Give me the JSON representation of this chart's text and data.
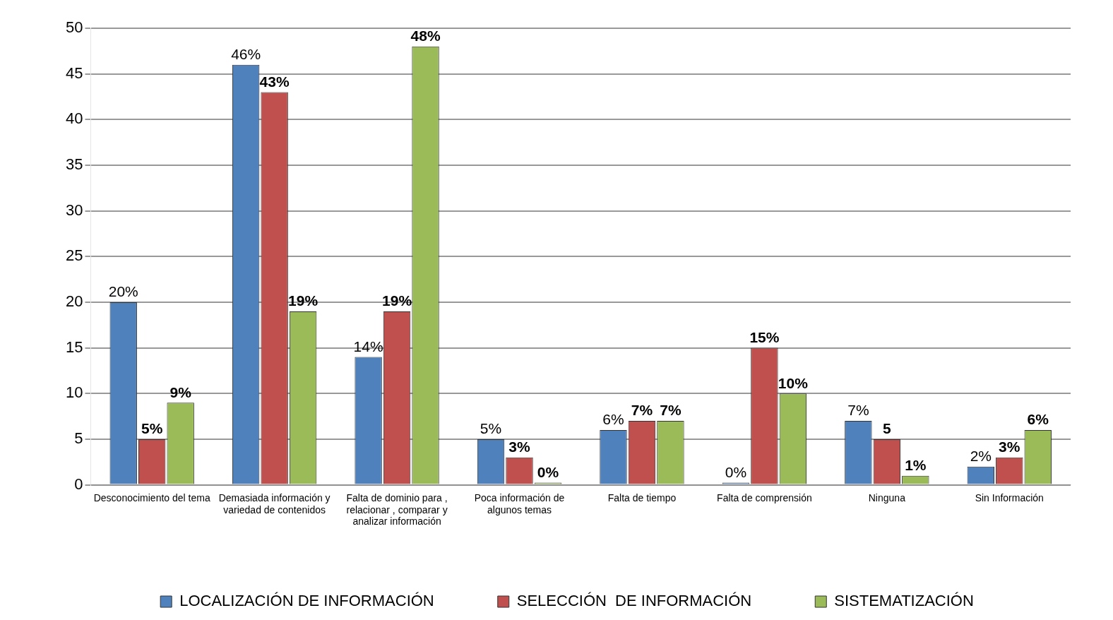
{
  "chart_data": {
    "type": "bar",
    "categories": [
      "Desconocimiento del tema",
      "Demasiada información y variedad de contenidos",
      "Falta de dominio para , relacionar , comparar y analizar información",
      "Poca información de algunos temas",
      "Falta de tiempo",
      "Falta de comprensión",
      "Ninguna",
      "Sin Información"
    ],
    "series": [
      {
        "name": "LOCALIZACIÓN DE INFORMACIÓN",
        "color": "#4f81bd",
        "values": [
          20,
          46,
          14,
          5,
          6,
          0,
          7,
          2
        ],
        "value_labels": [
          "20%",
          "46%",
          "14%",
          "5%",
          "6%",
          "0%",
          "7%",
          "2%"
        ]
      },
      {
        "name": "SELECCIÓN  DE INFORMACIÓN",
        "color": "#c0504d",
        "values": [
          5,
          43,
          19,
          3,
          7,
          15,
          5,
          3
        ],
        "value_labels": [
          "5%",
          "43%",
          "19%",
          "3%",
          "7%",
          "15%",
          "5",
          "3%"
        ]
      },
      {
        "name": "SISTEMATIZACIÓN",
        "color": "#9bbb59",
        "values": [
          9,
          19,
          48,
          0,
          7,
          10,
          1,
          6
        ],
        "value_labels": [
          "9%",
          "19%",
          "48%",
          "0%",
          "7%",
          "10%",
          "1%",
          "6%"
        ]
      }
    ],
    "ylim": [
      0,
      50
    ],
    "yticks": [
      0,
      5,
      10,
      15,
      20,
      25,
      30,
      35,
      40,
      45,
      50
    ],
    "grid": "y",
    "legend": "bottom"
  }
}
